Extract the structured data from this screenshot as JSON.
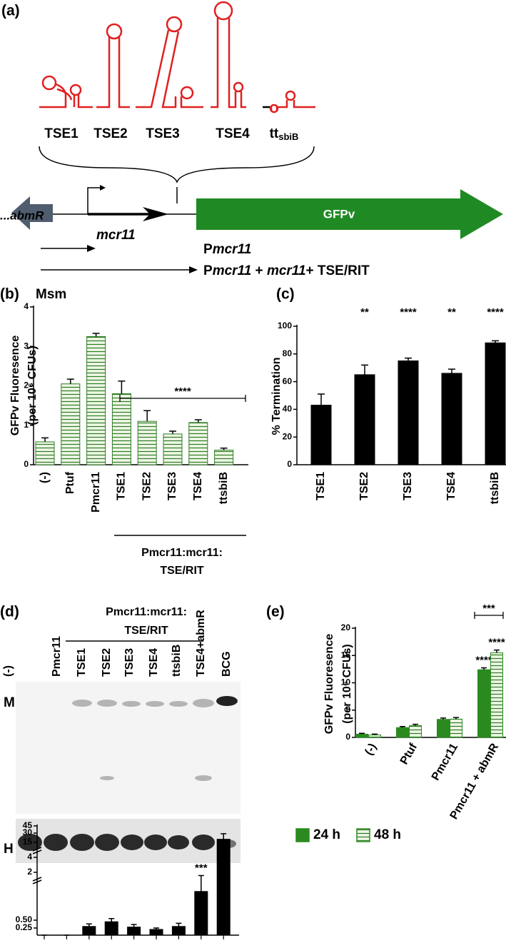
{
  "panel_a": {
    "label": "(a)",
    "elements": [
      "TSE1",
      "TSE2",
      "TSE3",
      "TSE4"
    ],
    "terminator": {
      "text": "tt",
      "subscript": "sbiB"
    },
    "upstream_gene": "...abmR",
    "srna_gene": "mcr11",
    "reporter": "GFPv",
    "constructs": [
      [
        "P",
        "mcr11"
      ],
      [
        "P",
        "mcr11",
        " + ",
        "mcr11",
        "+ TSE/RIT"
      ]
    ]
  },
  "chart_data": [
    {
      "type": "bar",
      "panel_label": "(b)",
      "title": "Msm",
      "y_label": [
        "GFPv Fluoresence",
        "(per 10⁶ CFUs)"
      ],
      "categories": [
        "(-)",
        "Ptuf",
        "Pmcr11",
        "TSE1",
        "TSE2",
        "TSE3",
        "TSE4",
        "ttsbiB"
      ],
      "values": [
        0.58,
        2.05,
        3.25,
        1.8,
        1.1,
        0.78,
        1.07,
        0.37
      ],
      "errors": [
        0.1,
        0.12,
        0.08,
        0.32,
        0.27,
        0.07,
        0.07,
        0.05
      ],
      "color": "#2f7d25",
      "hatch": true,
      "ylim": [
        0,
        4
      ],
      "yticks": [
        0,
        1,
        2,
        3,
        4
      ],
      "bracket_label": "****",
      "group_label": [
        "Pmcr11:mcr11:",
        "TSE/RIT"
      ]
    },
    {
      "type": "bar",
      "panel_label": "(c)",
      "y_label": [
        "% Termination"
      ],
      "categories": [
        "TSE1",
        "TSE2",
        "TSE3",
        "TSE4",
        "ttsbiB"
      ],
      "values": [
        43,
        65,
        75,
        66,
        88
      ],
      "errors": [
        8,
        7,
        2,
        3,
        1.5
      ],
      "color": "#000000",
      "significance": [
        null,
        "**",
        "****",
        "**",
        "****"
      ],
      "ylim": [
        0,
        100
      ],
      "yticks": [
        0,
        20,
        40,
        60,
        80,
        100
      ]
    },
    {
      "type": "bar",
      "panel_label": "(d)",
      "group_label": [
        "Pmcr11:mcr11:",
        "TSE/RIT"
      ],
      "blot_labels": [
        "M",
        "H"
      ],
      "categories": [
        "(-)",
        "Pmcr11",
        "TSE1",
        "TSE2",
        "TSE3",
        "TSE4",
        "ttsbiB",
        "TSE4+abmR",
        "BCG"
      ],
      "values": [
        0,
        0,
        0.3,
        0.45,
        0.28,
        0.2,
        0.3,
        1.4,
        20
      ],
      "errors": [
        0,
        0,
        0.08,
        0.1,
        0.08,
        0.05,
        0.1,
        0.5,
        9
      ],
      "color": "#000000",
      "significance": [
        null,
        null,
        null,
        null,
        null,
        null,
        null,
        "***",
        null
      ],
      "ylim": [
        0,
        45
      ],
      "yticks": [
        0.25,
        {
          "value": 0.5,
          "label": "0.50"
        },
        2,
        4,
        15,
        30,
        45
      ],
      "broken_axis": true
    },
    {
      "type": "grouped_bar",
      "panel_label": "(e)",
      "y_label": [
        "GFPv Fluoresence",
        "(per 10⁶ CFUs)"
      ],
      "categories": [
        "(-)",
        "Ptuf",
        "Pmcr11",
        "Pmcr11 + abmR"
      ],
      "series": [
        {
          "name": "24 h",
          "color": "#2a8a1f",
          "values": [
            0.6,
            1.8,
            3.3,
            12.4
          ],
          "errors": [
            0.15,
            0.2,
            0.25,
            0.35
          ],
          "significance": [
            null,
            null,
            null,
            "****"
          ]
        },
        {
          "name": "48 h",
          "color": "#2a8a1f",
          "hatch": true,
          "values": [
            0.45,
            2.15,
            3.35,
            15.5
          ],
          "errors": [
            0.15,
            0.25,
            0.3,
            0.5
          ],
          "significance": [
            null,
            null,
            null,
            "****"
          ]
        }
      ],
      "ylim": [
        0,
        20
      ],
      "yticks": [
        0,
        5,
        10,
        15,
        20
      ],
      "bracket_label": "***",
      "legend": "bottom"
    }
  ]
}
